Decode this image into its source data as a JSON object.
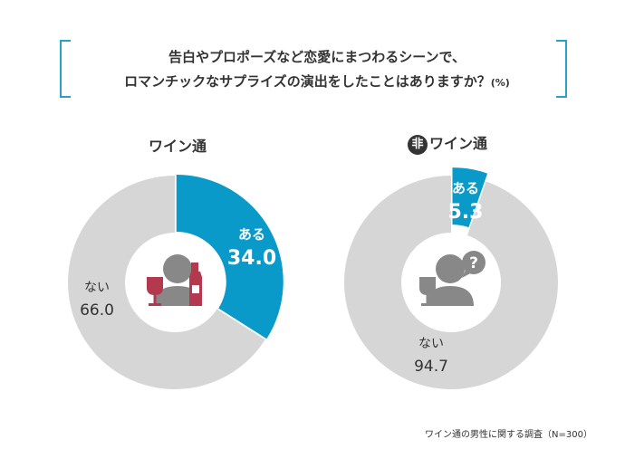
{
  "title": {
    "line1": "告白やプロポーズなど恋愛にまつわるシーンで、",
    "line2": "ロマンチックなサプライズの演出をしたことはありますか？",
    "unit": "(%)"
  },
  "charts": {
    "left_label": "ワイン通",
    "right_badge": "非",
    "right_label": "ワイン通",
    "question_mark": "?"
  },
  "chart_data": [
    {
      "type": "pie",
      "title": "ワイン通",
      "categories": [
        "ある",
        "ない"
      ],
      "values": [
        34.0,
        66.0
      ],
      "value_labels": [
        "34.0",
        "66.0"
      ],
      "colors": [
        "#0a9ac9",
        "#d6d6d6"
      ]
    },
    {
      "type": "pie",
      "title": "非ワイン通",
      "categories": [
        "ある",
        "ない"
      ],
      "values": [
        5.3,
        94.7
      ],
      "value_labels": [
        "5.3",
        "94.7"
      ],
      "colors": [
        "#0a9ac9",
        "#d6d6d6"
      ]
    }
  ],
  "colors": {
    "accent": "#0a9ac9",
    "remainder": "#d6d6d6",
    "bracket": "#2a9fc9",
    "wine": "#b33a4e",
    "person": "#888888"
  },
  "footnote": "ワイン通の男性に関する調査（N=300）"
}
